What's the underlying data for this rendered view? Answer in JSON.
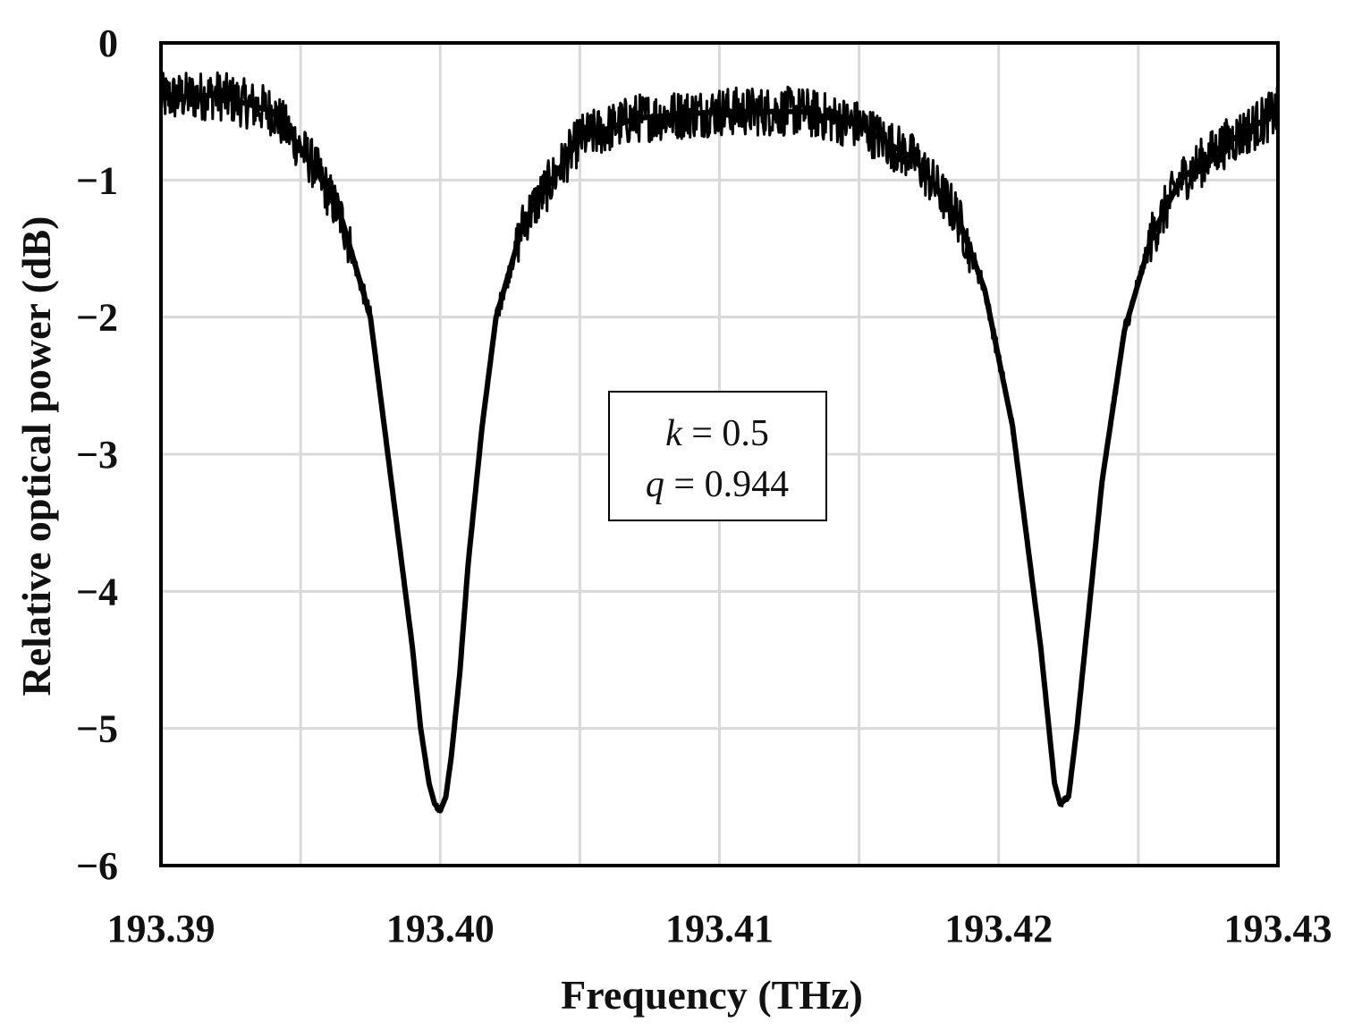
{
  "chart_data": {
    "type": "line",
    "xlabel": "Frequency (THz)",
    "ylabel": "Relative optical power (dB)",
    "xlim": [
      193.39,
      193.43
    ],
    "ylim": [
      -6,
      0
    ],
    "xticks": [
      193.39,
      193.395,
      193.4,
      193.405,
      193.41,
      193.415,
      193.42,
      193.425,
      193.43
    ],
    "xtick_labels": [
      "193.39",
      "193.40",
      "193.41",
      "193.42",
      "193.43"
    ],
    "xtick_label_values": [
      193.39,
      193.4,
      193.41,
      193.42,
      193.43
    ],
    "yticks": [
      0,
      -1,
      -2,
      -3,
      -4,
      -5,
      -6
    ],
    "ytick_labels": [
      "0",
      "−1",
      "−2",
      "−3",
      "−4",
      "−5",
      "−6"
    ],
    "grid": true,
    "line_color": "#000000",
    "grid_color": "#d9d9d9",
    "annotation": {
      "line1_var": "k",
      "line1_eq": " = 0.5",
      "line2_var": "q",
      "line2_eq": " = 0.944"
    },
    "series": [
      {
        "x": [
          193.39,
          193.392,
          193.394,
          193.3955,
          193.3965,
          193.3975,
          193.398,
          193.3985,
          193.399,
          193.3993,
          193.3996,
          193.3998,
          193.4,
          193.4002,
          193.4004,
          193.4007,
          193.401,
          193.4015,
          193.402,
          193.403,
          193.405,
          193.407,
          193.41,
          193.413,
          193.415,
          193.417,
          193.4185,
          193.4195,
          193.4205,
          193.421,
          193.4215,
          193.4218,
          193.422,
          193.4222,
          193.4225,
          193.4228,
          193.4232,
          193.4237,
          193.4245,
          193.4255,
          193.4265,
          193.428,
          193.43
        ],
        "y": [
          -0.4,
          -0.38,
          -0.5,
          -0.9,
          -1.3,
          -2.0,
          -2.8,
          -3.6,
          -4.4,
          -5.0,
          -5.4,
          -5.55,
          -5.6,
          -5.5,
          -5.2,
          -4.6,
          -3.8,
          -2.8,
          -2.0,
          -1.3,
          -0.7,
          -0.55,
          -0.5,
          -0.5,
          -0.6,
          -0.85,
          -1.25,
          -1.8,
          -2.8,
          -3.6,
          -4.4,
          -5.0,
          -5.4,
          -5.55,
          -5.5,
          -5.0,
          -4.2,
          -3.2,
          -2.1,
          -1.4,
          -1.0,
          -0.75,
          -0.5
        ]
      }
    ]
  }
}
